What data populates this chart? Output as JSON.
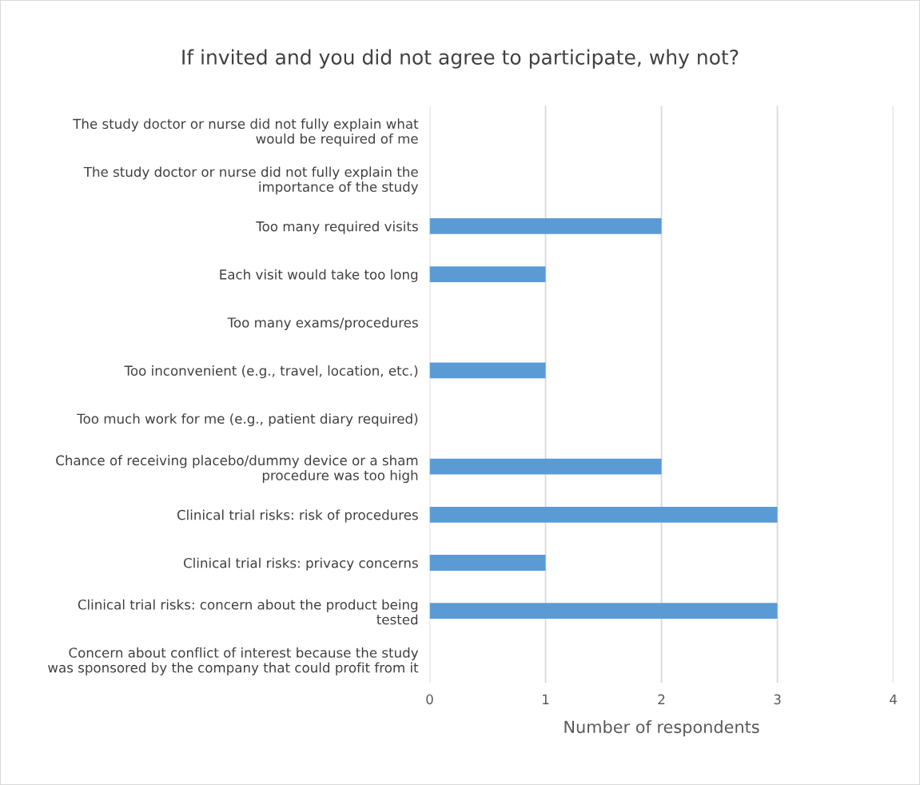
{
  "chart_data": {
    "type": "bar",
    "orientation": "horizontal",
    "title": "If invited and you did not agree to participate, why not?",
    "xlabel": "Number of respondents",
    "categories": [
      "The study doctor or nurse did not fully explain what\nwould be required of me",
      "The study doctor or nurse did not fully explain the\nimportance of the study",
      "Too many required visits",
      "Each visit would take too long",
      "Too many exams/procedures",
      "Too inconvenient (e.g., travel, location, etc.)",
      "Too much work for me (e.g., patient diary required)",
      "Chance of receiving placebo/dummy device or a sham\nprocedure was too high",
      "Clinical trial risks: risk of procedures",
      "Clinical trial risks: privacy concerns",
      "Clinical trial risks: concern about the product being\ntested",
      "Concern about conflict of interest because the study\nwas sponsored by the company that could profit from it"
    ],
    "values": [
      0,
      0,
      2,
      1,
      0,
      1,
      0,
      2,
      3,
      1,
      3,
      0
    ],
    "color": "#5b9bd5",
    "xlim": [
      0,
      4
    ],
    "xticks": [
      0,
      1,
      2,
      3,
      4
    ],
    "grid": "x"
  }
}
